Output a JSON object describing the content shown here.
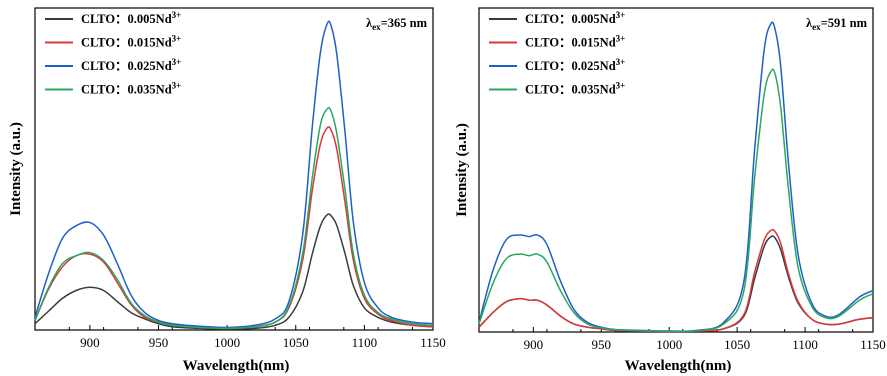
{
  "chart_data": [
    {
      "type": "line",
      "title": "",
      "xlabel": "Wavelength(nm)",
      "ylabel": "Intensity (a.u.)",
      "xlim": [
        860,
        1150
      ],
      "ylim": [
        0,
        100
      ],
      "xticks": [
        "900",
        "950",
        "1000",
        "1050",
        "1100",
        "1150"
      ],
      "yticks": [],
      "legend_position": "top-left",
      "annotation": {
        "prefix": "λ",
        "sub": "ex",
        "text": "=365 nm"
      },
      "series": [
        {
          "name": "CLTO：0.005Nd",
          "sup": "3+",
          "color": "#3a3a3a",
          "x": [
            860,
            870,
            880,
            890,
            900,
            910,
            920,
            930,
            940,
            950,
            960,
            980,
            1000,
            1020,
            1035,
            1045,
            1055,
            1062,
            1068,
            1073,
            1076,
            1080,
            1086,
            1092,
            1100,
            1110,
            1120,
            1135,
            1150
          ],
          "values": [
            2,
            6,
            10,
            12.5,
            13.5,
            12.5,
            9,
            5.5,
            3.5,
            2,
            1,
            0.5,
            0.3,
            0.5,
            1.5,
            4,
            12,
            24,
            33,
            36.5,
            36,
            33,
            24,
            14,
            7,
            4,
            2.5,
            1.5,
            1
          ]
        },
        {
          "name": "CLTO：0.015Nd",
          "sup": "3+",
          "color": "#d9383a",
          "x": [
            860,
            870,
            880,
            890,
            900,
            910,
            920,
            930,
            940,
            950,
            960,
            980,
            1000,
            1020,
            1035,
            1045,
            1055,
            1062,
            1068,
            1073,
            1076,
            1080,
            1086,
            1092,
            1100,
            1110,
            1120,
            1135,
            1150
          ],
          "values": [
            3,
            13,
            20,
            23.5,
            24,
            21.5,
            15,
            8,
            4,
            2.5,
            1.5,
            0.8,
            0.5,
            1,
            2.5,
            7,
            22,
            44,
            59,
            64,
            63,
            57,
            40,
            22,
            10,
            5,
            3,
            1.5,
            1
          ]
        },
        {
          "name": "CLTO：0.025Nd",
          "sup": "3+",
          "color": "#1f5fc8",
          "x": [
            860,
            870,
            880,
            890,
            900,
            910,
            920,
            930,
            940,
            950,
            960,
            980,
            1000,
            1020,
            1035,
            1045,
            1055,
            1062,
            1068,
            1073,
            1076,
            1080,
            1086,
            1092,
            1100,
            1110,
            1120,
            1135,
            1150
          ],
          "values": [
            4,
            18,
            29,
            33,
            34,
            30,
            21,
            11,
            5.5,
            3,
            2,
            1.2,
            0.8,
            1.5,
            3.5,
            9,
            30,
            64,
            88,
            97,
            96,
            87,
            62,
            34,
            15,
            7,
            4,
            2.5,
            2
          ]
        },
        {
          "name": "CLTO：0.035Nd",
          "sup": "3+",
          "color": "#2aa860",
          "x": [
            860,
            870,
            880,
            890,
            900,
            910,
            920,
            930,
            940,
            950,
            960,
            980,
            1000,
            1020,
            1035,
            1045,
            1055,
            1062,
            1068,
            1073,
            1076,
            1080,
            1086,
            1092,
            1100,
            1110,
            1120,
            1135,
            1150
          ],
          "values": [
            3,
            13.5,
            21,
            23.5,
            24.5,
            22,
            16,
            8.5,
            4.5,
            2.5,
            1.5,
            0.8,
            0.5,
            1,
            2.5,
            7.5,
            24,
            48,
            65,
            70,
            69,
            62,
            44,
            24,
            11,
            5.5,
            3.5,
            2,
            1.5
          ]
        }
      ]
    },
    {
      "type": "line",
      "title": "",
      "xlabel": "Wavelength(nm)",
      "ylabel": "Intensity (a.u.)",
      "xlim": [
        860,
        1150
      ],
      "ylim": [
        0,
        100
      ],
      "xticks": [
        "900",
        "950",
        "1000",
        "1050",
        "1100",
        "1150"
      ],
      "yticks": [],
      "legend_position": "top-left",
      "annotation": {
        "prefix": "λ",
        "sub": "ex",
        "text": "=591 nm"
      },
      "series": [
        {
          "name": "CLTO：0.005Nd",
          "sup": "3+",
          "color": "#3a3a3a",
          "x": [
            860,
            870,
            880,
            890,
            897,
            903,
            910,
            920,
            930,
            940,
            950,
            960,
            980,
            1000,
            1020,
            1040,
            1055,
            1063,
            1070,
            1075,
            1078,
            1082,
            1088,
            1095,
            1105,
            1115,
            1125,
            1140,
            1150
          ],
          "values": [
            1.5,
            6,
            9.5,
            10.5,
            10,
            10,
            8.5,
            5,
            2.5,
            1.5,
            1,
            0.5,
            0.3,
            0.2,
            0.3,
            1,
            5,
            17,
            27,
            30,
            29.5,
            26,
            17,
            9,
            4,
            2.5,
            2.5,
            4,
            4.5
          ]
        },
        {
          "name": "CLTO：0.015Nd",
          "sup": "3+",
          "color": "#d9383a",
          "x": [
            860,
            870,
            880,
            890,
            897,
            903,
            910,
            920,
            930,
            940,
            950,
            960,
            980,
            1000,
            1020,
            1040,
            1055,
            1063,
            1070,
            1075,
            1078,
            1082,
            1088,
            1095,
            1105,
            1115,
            1125,
            1140,
            1150
          ],
          "values": [
            1.5,
            6,
            9.5,
            10.5,
            10,
            10,
            8.5,
            5,
            2.5,
            1.5,
            1,
            0.5,
            0.3,
            0.2,
            0.3,
            1,
            5.5,
            19,
            29,
            32,
            31.5,
            28,
            18,
            9.5,
            4,
            2.5,
            2.5,
            4,
            4.5
          ]
        },
        {
          "name": "CLTO：0.025Nd",
          "sup": "3+",
          "color": "#1f5fc8",
          "x": [
            860,
            870,
            880,
            890,
            897,
            903,
            910,
            920,
            930,
            940,
            950,
            960,
            980,
            1000,
            1020,
            1040,
            1055,
            1063,
            1070,
            1075,
            1078,
            1082,
            1088,
            1095,
            1105,
            1115,
            1125,
            1140,
            1150
          ],
          "values": [
            3,
            19,
            29,
            30.5,
            30,
            30.5,
            27.5,
            16,
            7,
            3,
            1.5,
            0.8,
            0.5,
            0.3,
            0.5,
            3,
            16,
            58,
            89,
            97,
            95,
            84,
            52,
            24,
            9,
            5,
            5.5,
            11,
            13
          ]
        },
        {
          "name": "CLTO：0.035Nd",
          "sup": "3+",
          "color": "#2aa860",
          "x": [
            860,
            870,
            880,
            890,
            897,
            903,
            910,
            920,
            930,
            940,
            950,
            960,
            980,
            1000,
            1020,
            1040,
            1055,
            1063,
            1070,
            1075,
            1078,
            1082,
            1088,
            1095,
            1105,
            1115,
            1125,
            1140,
            1150
          ],
          "values": [
            2.5,
            15,
            23,
            24.5,
            24,
            24.5,
            22,
            13,
            6,
            2.5,
            1.3,
            0.7,
            0.4,
            0.3,
            0.4,
            2.5,
            13,
            49,
            75,
            82,
            81,
            71,
            44,
            20,
            8,
            4.5,
            5,
            10,
            12
          ]
        }
      ]
    }
  ]
}
